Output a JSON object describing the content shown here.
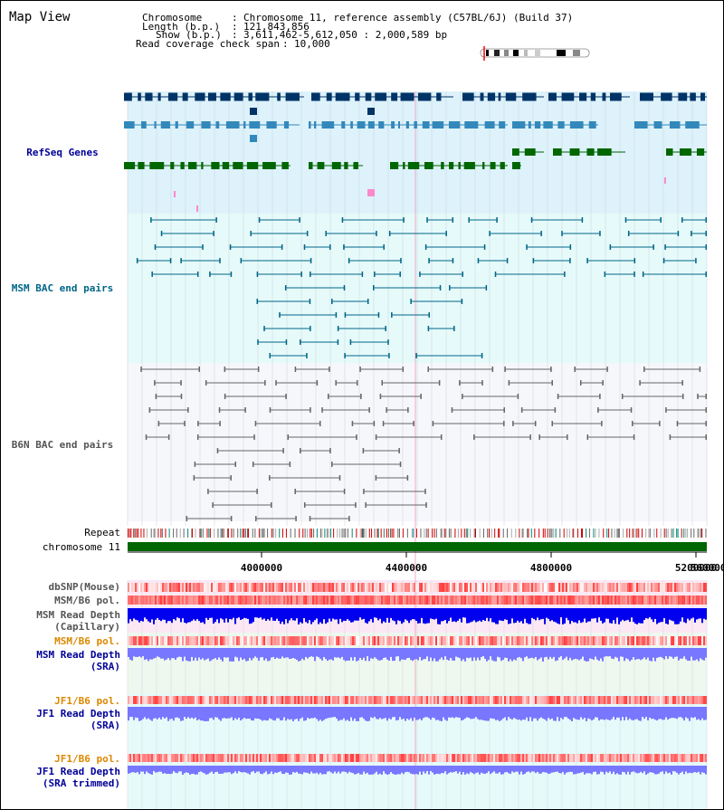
{
  "title": "Map View",
  "info": {
    "chromosome_label": "Chromosome",
    "chromosome_value": "Chromosome 11, reference assembly (C57BL/6J) (Build 37)",
    "length_label": "Length (b.p.)",
    "length_value": "121,843,856",
    "show_label": "Show (b.p.)",
    "show_value": "3,611,462-5,612,050 : 2,000,589 bp",
    "span_label": "Read coverage check span",
    "span_value": "10,000"
  },
  "tracks": {
    "refseq": "RefSeq Genes",
    "msm_bac": "MSM BAC end pairs",
    "b6n_bac": "B6N BAC end pairs",
    "repeat": "Repeat",
    "chromosome": "chromosome 11",
    "dbsnp": "dbSNP(Mouse)",
    "msm_pol_1": "MSM/B6 pol.",
    "msm_depth_cap_1": "MSM Read Depth",
    "msm_depth_cap_2": "(Capillary)",
    "msm_pol_2": "MSM/B6 pol.",
    "msm_depth_sra_1": "MSM Read Depth",
    "msm_depth_sra_2": "(SRA)",
    "jf1_pol_1": "JF1/B6 pol.",
    "jf1_depth_sra_1": "JF1 Read Depth",
    "jf1_depth_sra_2": "(SRA)",
    "jf1_pol_2": "JF1/B6 pol.",
    "jf1_trim_1": "JF1 Read Depth",
    "jf1_trim_2": "(SRA trimmed)"
  },
  "axis_ticks": [
    "4000000",
    "4400000",
    "4800000",
    "5200000",
    "5600000"
  ],
  "colors": {
    "refseq_dark": "#003366",
    "refseq_mid": "#3388bb",
    "refseq_green": "#006600",
    "msm_bac": "#006688",
    "b6n_bac": "#666666",
    "chromosome": "#006600",
    "pol_red": "#ff3333",
    "depth_blue": "#0000ee",
    "depth_light": "#7777ff",
    "label_blue": "#000099",
    "label_orange": "#dd8800",
    "label_teal": "#006688",
    "label_gray": "#555555"
  }
}
